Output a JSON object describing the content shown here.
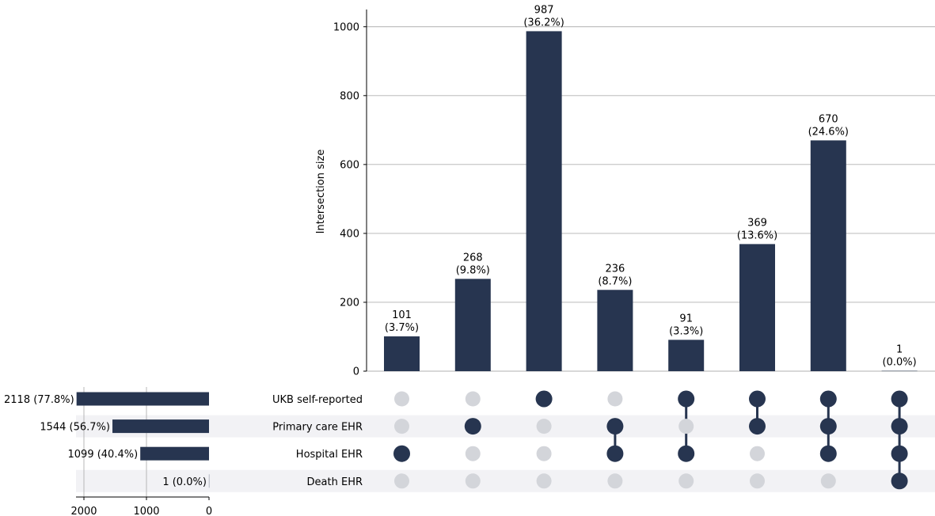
{
  "chart_data": {
    "type": "bar",
    "subtype": "upset",
    "ylabel": "Intersection size",
    "ylim": [
      0,
      1050
    ],
    "yticks": [
      0,
      200,
      400,
      600,
      800,
      1000
    ],
    "grid": true,
    "colors": {
      "bar": "#273550",
      "dot_active": "#273550",
      "dot_inactive": "#d3d5da",
      "row_shade": "#f2f2f5",
      "grid": "#b0b0b0"
    },
    "intersections": [
      {
        "value": 101,
        "value_label": "101",
        "pct_label": "(3.7%)",
        "members": [
          2
        ]
      },
      {
        "value": 268,
        "value_label": "268",
        "pct_label": "(9.8%)",
        "members": [
          1
        ]
      },
      {
        "value": 987,
        "value_label": "987",
        "pct_label": "(36.2%)",
        "members": [
          0
        ]
      },
      {
        "value": 236,
        "value_label": "236",
        "pct_label": "(8.7%)",
        "members": [
          1,
          2
        ]
      },
      {
        "value": 91,
        "value_label": "91",
        "pct_label": "(3.3%)",
        "members": [
          0,
          2
        ]
      },
      {
        "value": 369,
        "value_label": "369",
        "pct_label": "(13.6%)",
        "members": [
          0,
          1
        ]
      },
      {
        "value": 670,
        "value_label": "670",
        "pct_label": "(24.6%)",
        "members": [
          0,
          1,
          2
        ]
      },
      {
        "value": 1,
        "value_label": "1",
        "pct_label": "(0.0%)",
        "members": [
          0,
          1,
          2,
          3
        ]
      }
    ],
    "sets": [
      {
        "name": "UKB self-reported",
        "size": 2118,
        "size_label": "2118 (77.8%)"
      },
      {
        "name": "Primary care EHR",
        "size": 1544,
        "size_label": "1544 (56.7%)"
      },
      {
        "name": "Hospital EHR",
        "size": 1099,
        "size_label": "1099 (40.4%)"
      },
      {
        "name": "Death EHR",
        "size": 1,
        "size_label": "1 (0.0%)"
      }
    ],
    "set_size_axis": {
      "xlim": [
        0,
        2150
      ],
      "ticks": [
        2000,
        1000,
        0
      ]
    }
  }
}
